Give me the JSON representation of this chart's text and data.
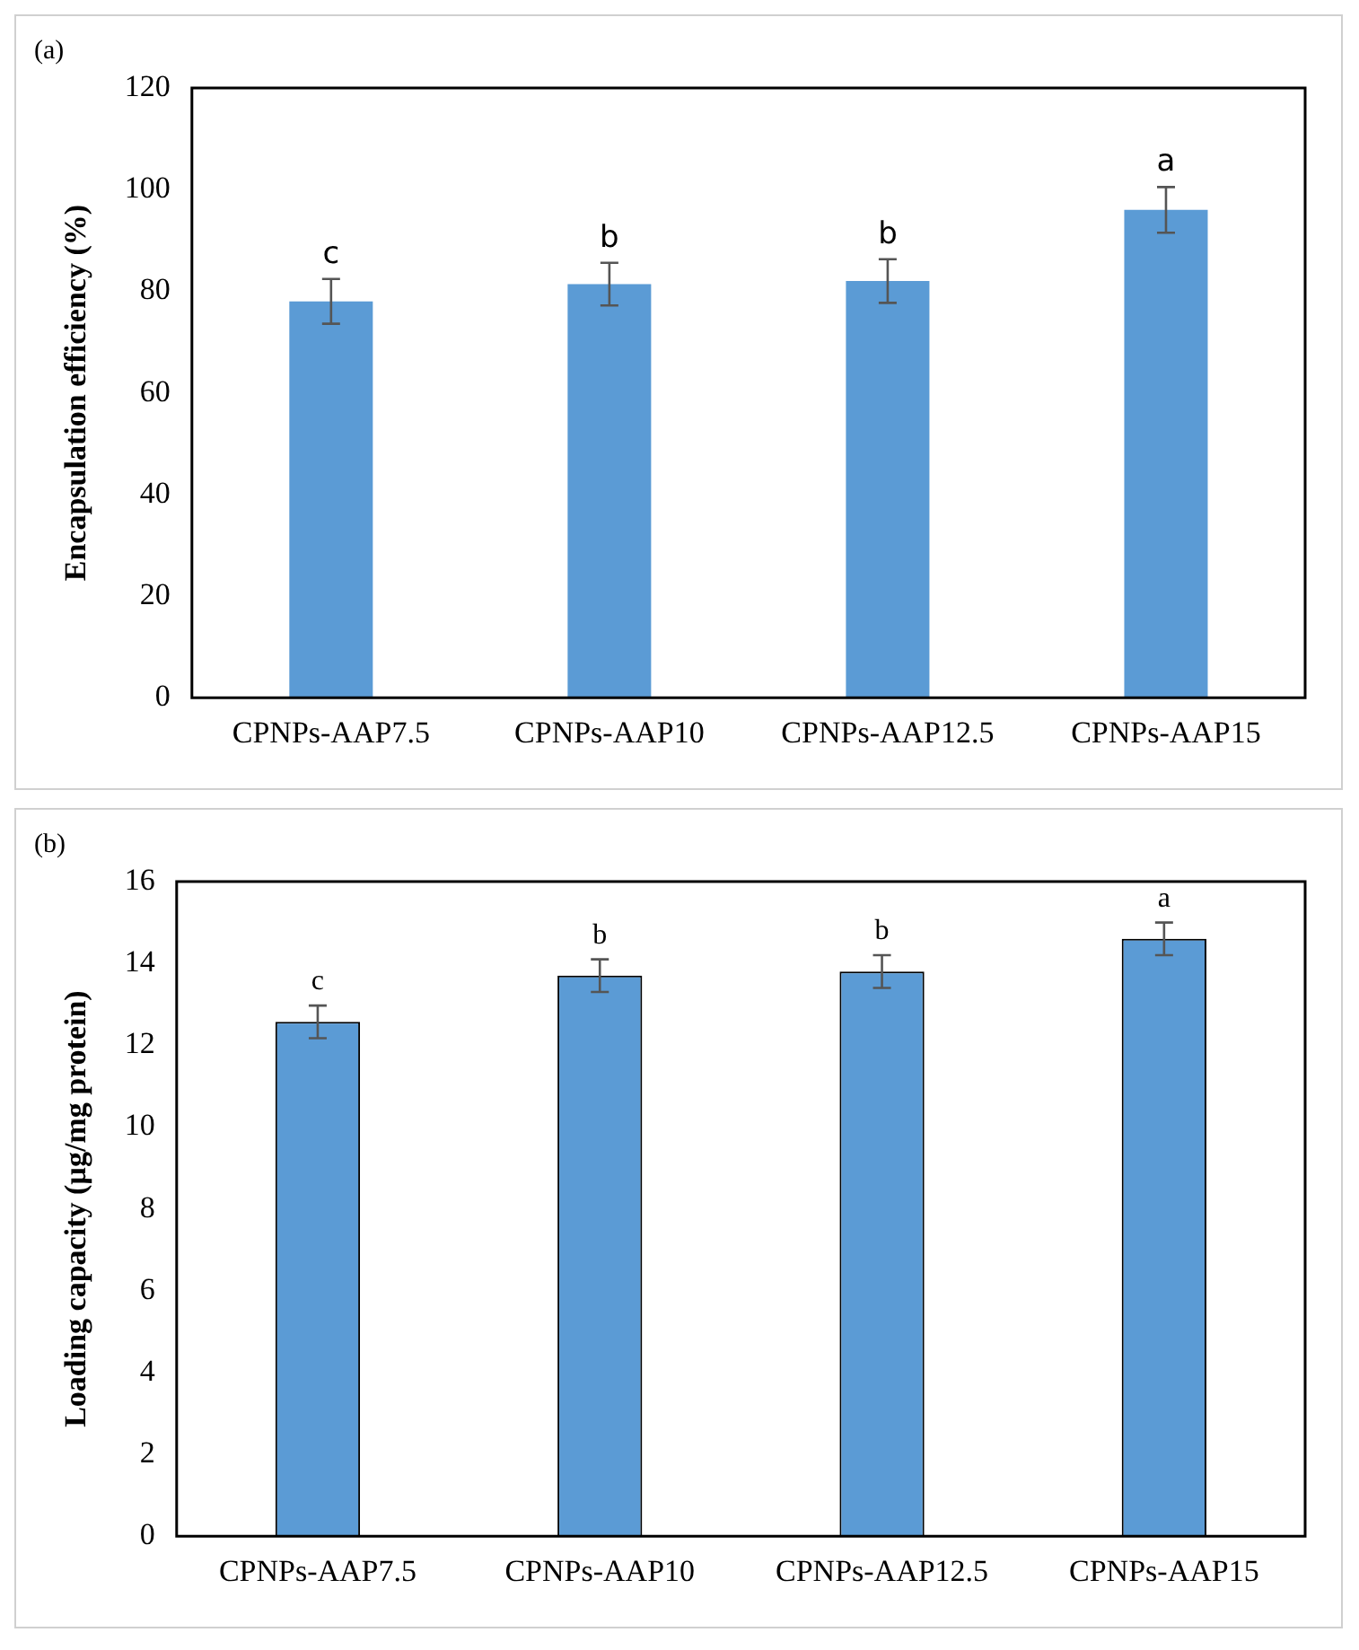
{
  "chart_data": [
    {
      "type": "bar",
      "ylabel": "Encapsulation efficiency (%)",
      "categories": [
        "CPNPs-AAP7.5",
        "CPNPs-AAP10",
        "CPNPs-AAP12.5",
        "CPNPs-AAP15"
      ],
      "values": [
        78,
        81.4,
        82,
        96
      ],
      "errors": [
        4.4,
        4.2,
        4.3,
        4.5
      ],
      "color": "#5b9bd5",
      "ylim": [
        0,
        120
      ],
      "yticks": [
        0,
        20,
        40,
        60,
        80,
        100,
        120
      ],
      "grid": false,
      "legend": false,
      "annotations": [
        "(a)",
        {
          "text": "c",
          "x": "CPNPs-AAP7.5",
          "y": 82.4
        },
        {
          "text": "b",
          "x": "CPNPs-AAP10",
          "y": 85.6
        },
        {
          "text": "b",
          "x": "CPNPs-AAP12.5",
          "y": 86.3
        },
        {
          "text": "a",
          "x": "CPNPs-AAP15",
          "y": 100.5
        }
      ]
    },
    {
      "type": "bar",
      "ylabel": "Loading capacity (µg/mg protein)",
      "categories": [
        "CPNPs-AAP7.5",
        "CPNPs-AAP10",
        "CPNPs-AAP12.5",
        "CPNPs-AAP15"
      ],
      "values": [
        12.57,
        13.7,
        13.8,
        14.6
      ],
      "errors": [
        0.4,
        0.4,
        0.4,
        0.4
      ],
      "color": "#5b9bd5",
      "ylim": [
        0,
        16
      ],
      "yticks": [
        0,
        2,
        4,
        6,
        8,
        10,
        12,
        14,
        16
      ],
      "grid": false,
      "legend": false,
      "annotations": [
        "(b)",
        {
          "text": "c",
          "x": "CPNPs-AAP7.5",
          "y": 12.97
        },
        {
          "text": "b",
          "x": "CPNPs-AAP10",
          "y": 14.1
        },
        {
          "text": "b",
          "x": "CPNPs-AAP12.5",
          "y": 14.2
        },
        {
          "text": "a",
          "x": "CPNPs-AAP15",
          "y": 15.0
        }
      ]
    }
  ]
}
